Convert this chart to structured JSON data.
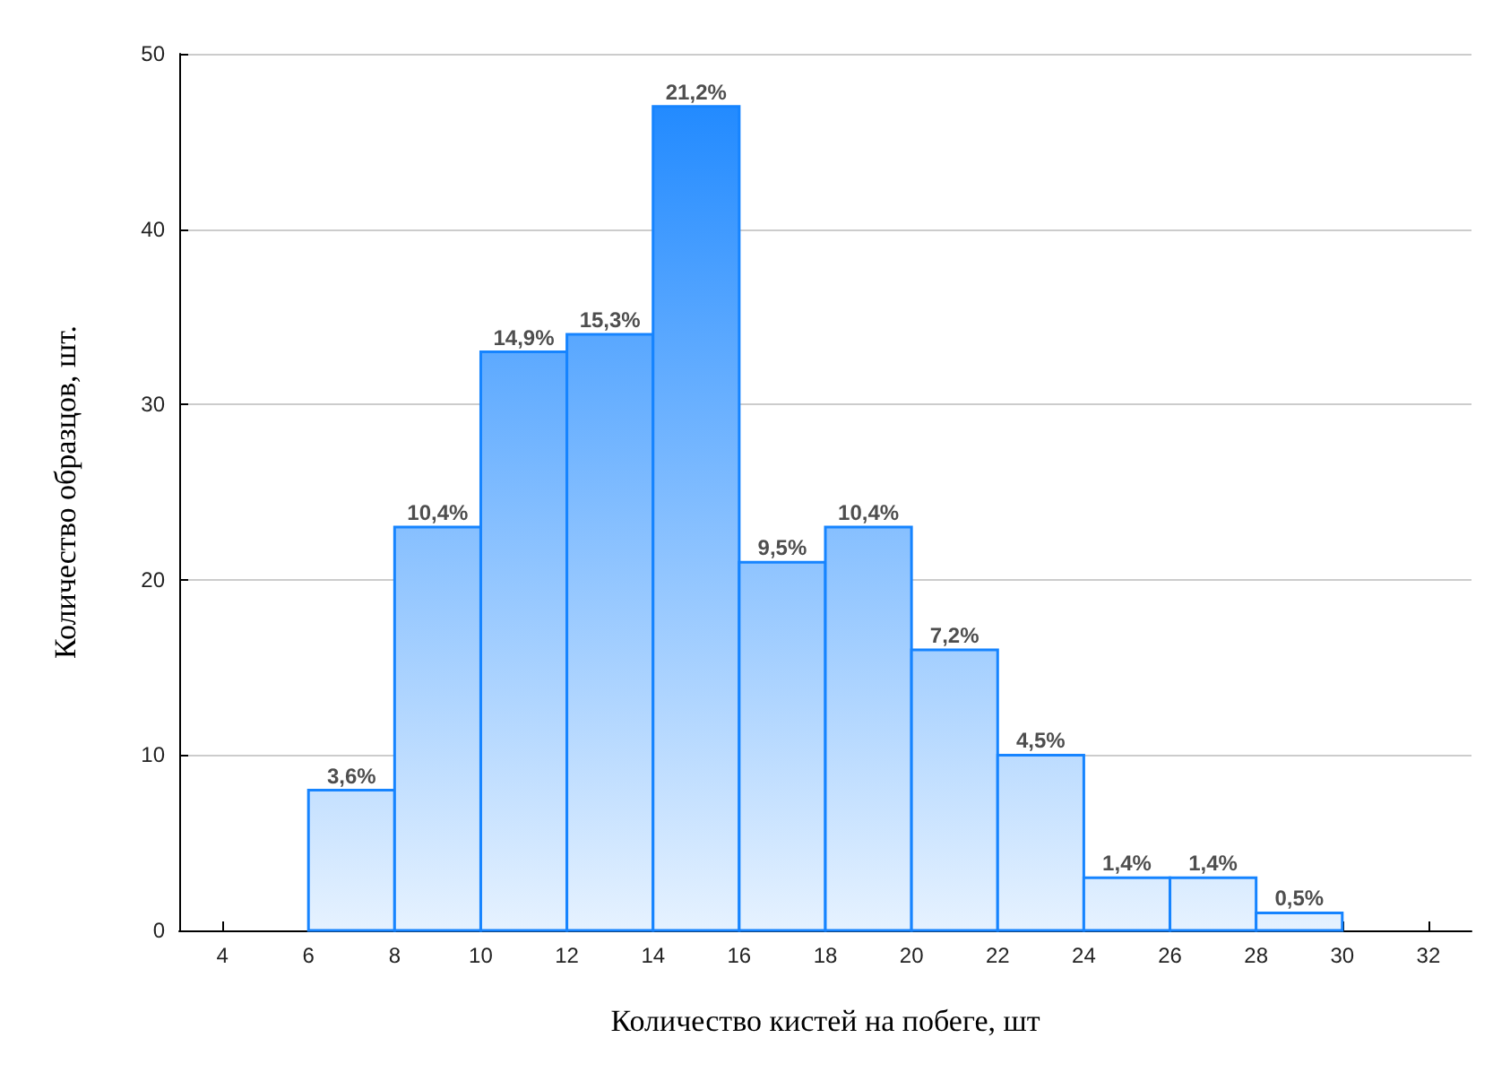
{
  "chart_data": {
    "type": "histogram",
    "xlabel": "Количество кистей на побеге, шт",
    "ylabel": "Количество образцов, шт.",
    "bins": [
      6,
      8,
      10,
      12,
      14,
      16,
      18,
      20,
      22,
      24,
      26,
      28,
      30
    ],
    "values": [
      8,
      23,
      33,
      34,
      47,
      21,
      23,
      16,
      10,
      3,
      3,
      1
    ],
    "annotations": [
      {
        "text": "3,6%",
        "x": 7,
        "y": 8
      },
      {
        "text": "10,4%",
        "x": 9,
        "y": 23
      },
      {
        "text": "14,9%",
        "x": 11,
        "y": 33
      },
      {
        "text": "15,3%",
        "x": 13,
        "y": 34
      },
      {
        "text": "21,2%",
        "x": 15,
        "y": 47
      },
      {
        "text": "9,5%",
        "x": 17,
        "y": 21
      },
      {
        "text": "10,4%",
        "x": 19,
        "y": 23
      },
      {
        "text": "7,2%",
        "x": 21,
        "y": 16
      },
      {
        "text": "4,5%",
        "x": 23,
        "y": 10
      },
      {
        "text": "1,4%",
        "x": 25,
        "y": 3
      },
      {
        "text": "1,4%",
        "x": 27,
        "y": 3
      },
      {
        "text": "0,5%",
        "x": 29,
        "y": 1
      }
    ],
    "color": "#1684ff",
    "xlim": [
      3,
      33
    ],
    "xticks": [
      4,
      6,
      8,
      10,
      12,
      14,
      16,
      18,
      20,
      22,
      24,
      26,
      28,
      30,
      32
    ],
    "ylim": [
      0,
      50
    ],
    "yticks": [
      0,
      10,
      20,
      30,
      40,
      50
    ],
    "grid": "y"
  }
}
